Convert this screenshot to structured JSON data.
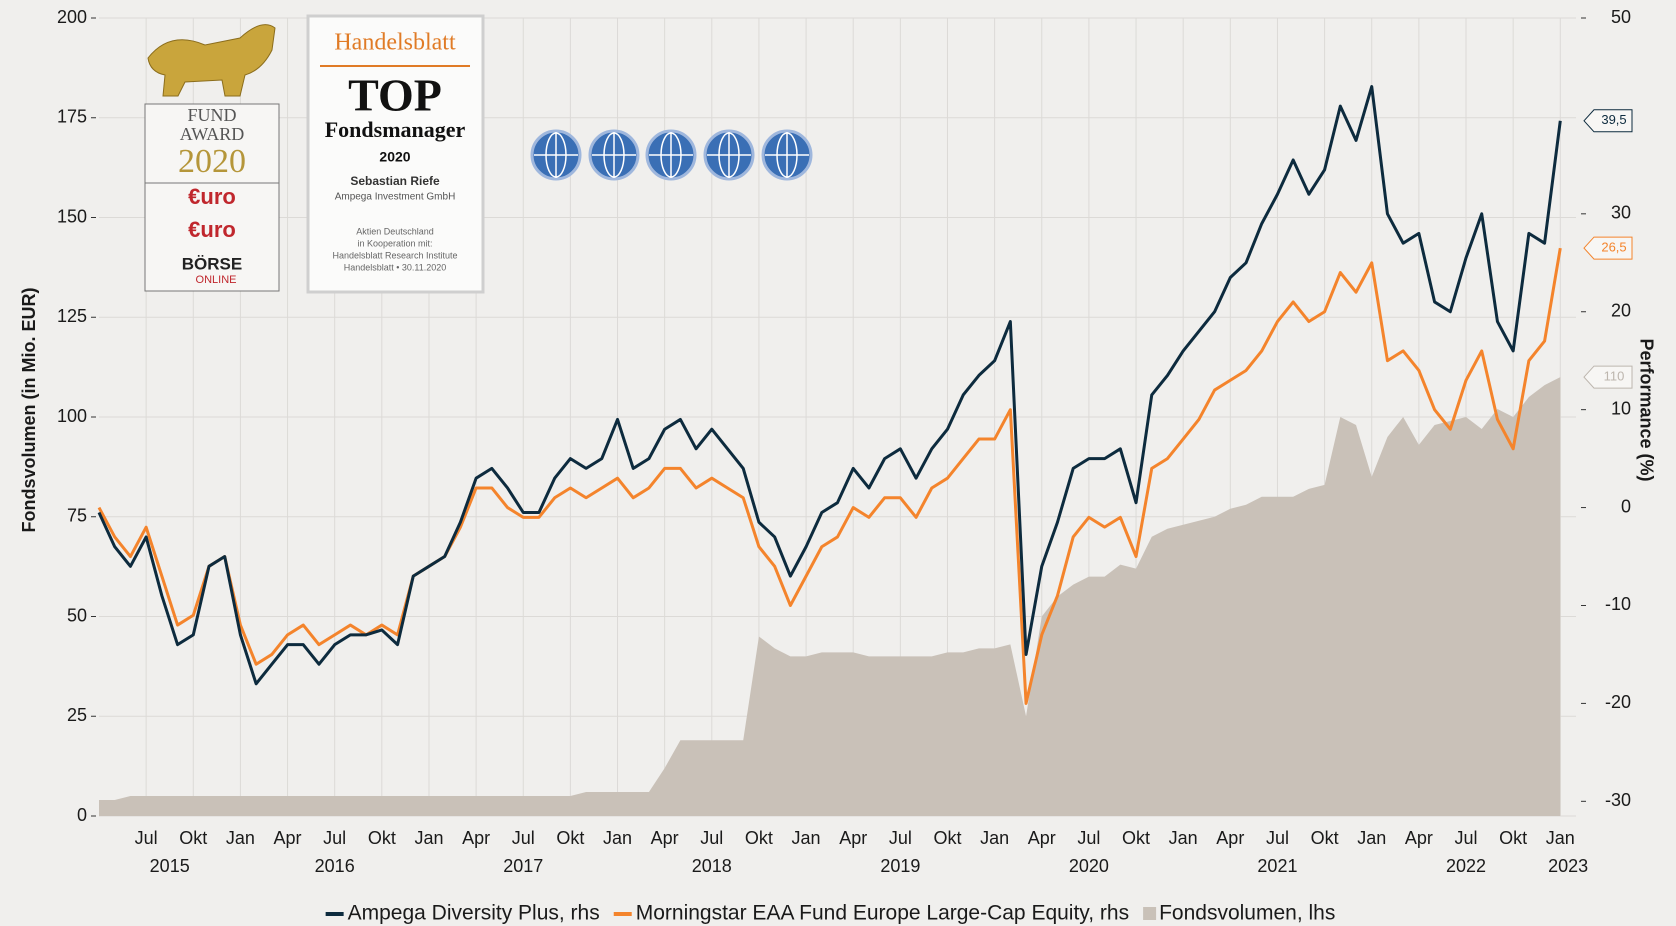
{
  "chart_data": {
    "type": "line",
    "y_label": "Fondsvolumen (in Mio. EUR)",
    "y2_label": "Performance (%)",
    "xlim": [
      "2015-04",
      "2023-02"
    ],
    "xticks": [
      {
        "value": "2015-07",
        "label": "Jul"
      },
      {
        "value": "2015-10",
        "label": "Okt"
      },
      {
        "value": "2016-01",
        "label": "Jan"
      },
      {
        "value": "2016-04",
        "label": "Apr"
      },
      {
        "value": "2016-07",
        "label": "Jul"
      },
      {
        "value": "2016-10",
        "label": "Okt"
      },
      {
        "value": "2017-01",
        "label": "Jan"
      },
      {
        "value": "2017-04",
        "label": "Apr"
      },
      {
        "value": "2017-07",
        "label": "Jul"
      },
      {
        "value": "2017-10",
        "label": "Okt"
      },
      {
        "value": "2018-01",
        "label": "Jan"
      },
      {
        "value": "2018-04",
        "label": "Apr"
      },
      {
        "value": "2018-07",
        "label": "Jul"
      },
      {
        "value": "2018-10",
        "label": "Okt"
      },
      {
        "value": "2019-01",
        "label": "Jan"
      },
      {
        "value": "2019-04",
        "label": "Apr"
      },
      {
        "value": "2019-07",
        "label": "Jul"
      },
      {
        "value": "2019-10",
        "label": "Okt"
      },
      {
        "value": "2020-01",
        "label": "Jan"
      },
      {
        "value": "2020-04",
        "label": "Apr"
      },
      {
        "value": "2020-07",
        "label": "Jul"
      },
      {
        "value": "2020-10",
        "label": "Okt"
      },
      {
        "value": "2021-01",
        "label": "Jan"
      },
      {
        "value": "2021-04",
        "label": "Apr"
      },
      {
        "value": "2021-07",
        "label": "Jul"
      },
      {
        "value": "2021-10",
        "label": "Okt"
      },
      {
        "value": "2022-01",
        "label": "Jan"
      },
      {
        "value": "2022-04",
        "label": "Apr"
      },
      {
        "value": "2022-07",
        "label": "Jul"
      },
      {
        "value": "2022-10",
        "label": "Okt"
      },
      {
        "value": "2023-01",
        "label": "Jan"
      }
    ],
    "years": [
      2015,
      2016,
      2017,
      2018,
      2019,
      2020,
      2021,
      2022,
      2023
    ],
    "ylim": [
      0,
      200
    ],
    "yticks": [
      0,
      25,
      50,
      75,
      100,
      125,
      150,
      175,
      200
    ],
    "y2lim": [
      -31.5,
      50
    ],
    "y2ticks": [
      -30,
      -20,
      -10,
      0,
      10,
      20,
      30,
      50
    ],
    "grid": true,
    "x": [
      "2015-04",
      "2015-05",
      "2015-06",
      "2015-07",
      "2015-08",
      "2015-09",
      "2015-10",
      "2015-11",
      "2015-12",
      "2016-01",
      "2016-02",
      "2016-03",
      "2016-04",
      "2016-05",
      "2016-06",
      "2016-07",
      "2016-08",
      "2016-09",
      "2016-10",
      "2016-11",
      "2016-12",
      "2017-01",
      "2017-02",
      "2017-03",
      "2017-04",
      "2017-05",
      "2017-06",
      "2017-07",
      "2017-08",
      "2017-09",
      "2017-10",
      "2017-11",
      "2017-12",
      "2018-01",
      "2018-02",
      "2018-03",
      "2018-04",
      "2018-05",
      "2018-06",
      "2018-07",
      "2018-08",
      "2018-09",
      "2018-10",
      "2018-11",
      "2018-12",
      "2019-01",
      "2019-02",
      "2019-03",
      "2019-04",
      "2019-05",
      "2019-06",
      "2019-07",
      "2019-08",
      "2019-09",
      "2019-10",
      "2019-11",
      "2019-12",
      "2020-01",
      "2020-02",
      "2020-03",
      "2020-04",
      "2020-05",
      "2020-06",
      "2020-07",
      "2020-08",
      "2020-09",
      "2020-10",
      "2020-11",
      "2020-12",
      "2021-01",
      "2021-02",
      "2021-03",
      "2021-04",
      "2021-05",
      "2021-06",
      "2021-07",
      "2021-08",
      "2021-09",
      "2021-10",
      "2021-11",
      "2021-12",
      "2022-01",
      "2022-02",
      "2022-03",
      "2022-04",
      "2022-05",
      "2022-06",
      "2022-07",
      "2022-08",
      "2022-09",
      "2022-10",
      "2022-11",
      "2022-12",
      "2023-01"
    ],
    "series": [
      {
        "name": "Fondsvolumen, lhs",
        "type": "area",
        "axis": "y",
        "color": "#c9c1b8",
        "label_color": "#bdb6ae",
        "end_label": "110",
        "values": [
          4,
          4,
          5,
          5,
          5,
          5,
          5,
          5,
          5,
          5,
          5,
          5,
          5,
          5,
          5,
          5,
          5,
          5,
          5,
          5,
          5,
          5,
          5,
          5,
          5,
          5,
          5,
          5,
          5,
          5,
          5,
          6,
          6,
          6,
          6,
          6,
          12,
          19,
          19,
          19,
          19,
          19,
          45,
          42,
          40,
          40,
          41,
          41,
          41,
          40,
          40,
          40,
          40,
          40,
          41,
          41,
          42,
          42,
          43,
          25,
          50,
          55,
          58,
          60,
          60,
          63,
          62,
          70,
          72,
          73,
          74,
          75,
          77,
          78,
          80,
          80,
          80,
          82,
          83,
          100,
          98,
          85,
          95,
          100,
          93,
          98,
          99,
          100,
          97,
          102,
          100,
          105,
          108,
          110
        ]
      },
      {
        "name": "Morningstar EAA Fund Europe Large-Cap Equity, rhs",
        "type": "line",
        "axis": "y2",
        "color": "#f4842c",
        "end_label": "26,5",
        "values": [
          0,
          -3,
          -5,
          -2,
          -7,
          -12,
          -11,
          -6,
          -5,
          -12,
          -16,
          -15,
          -13,
          -12,
          -14,
          -13,
          -12,
          -13,
          -12,
          -13,
          -7,
          -6,
          -5,
          -2,
          2,
          2,
          0,
          -1,
          -1,
          1,
          2,
          1,
          2,
          3,
          1,
          2,
          4,
          4,
          2,
          3,
          2,
          1,
          -4,
          -6,
          -10,
          -7,
          -4,
          -3,
          0,
          -1,
          1,
          1,
          -1,
          2,
          3,
          5,
          7,
          7,
          10,
          -20,
          -13,
          -9,
          -3,
          -1,
          -2,
          -1,
          -5,
          4,
          5,
          7,
          9,
          12,
          13,
          14,
          16,
          19,
          21,
          19,
          20,
          24,
          22,
          25,
          15,
          16,
          14,
          10,
          8,
          13,
          16,
          9,
          6,
          15,
          17,
          26.5
        ]
      },
      {
        "name": "Ampega Diversity Plus, rhs",
        "type": "line",
        "axis": "y2",
        "color": "#0d2b3e",
        "end_label": "39,5",
        "values": [
          -0.5,
          -4,
          -6,
          -3,
          -9,
          -14,
          -13,
          -6,
          -5,
          -13,
          -18,
          -16,
          -14,
          -14,
          -16,
          -14,
          -13,
          -13,
          -12.5,
          -14,
          -7,
          -6,
          -5,
          -1.5,
          3,
          4,
          2,
          -0.5,
          -0.5,
          3,
          5,
          4,
          5,
          9,
          4,
          5,
          8,
          9,
          6,
          8,
          6,
          4,
          -1.5,
          -3,
          -7,
          -4,
          -0.5,
          0.5,
          4,
          2,
          5,
          6,
          3,
          6,
          8,
          11.5,
          13.5,
          15,
          19,
          -15,
          -6,
          -1.5,
          4,
          5,
          5,
          6,
          0.5,
          11.5,
          13.5,
          16,
          18,
          20,
          23.5,
          25,
          29,
          32,
          35.5,
          32,
          34.5,
          41,
          37.5,
          43,
          30,
          27,
          28,
          21,
          20,
          25.5,
          30,
          19,
          16,
          28,
          27,
          39.5
        ]
      }
    ],
    "legend_order": [
      2,
      1,
      0
    ]
  },
  "badges": {
    "award": {
      "line1": "FUND",
      "line2": "AWARD",
      "year": "2020",
      "euro1": "€uro",
      "euro2": "€uro",
      "boerse": "BÖRSE",
      "online": "ONLINE"
    },
    "handelsblatt": {
      "brand": "Handelsblatt",
      "top": "TOP",
      "title": "Fondsmanager",
      "year": "2020",
      "name": "Sebastian Riefe",
      "company": "Ampega Investment GmbH",
      "note1": "Aktien Deutschland",
      "note2": "in Kooperation mit:",
      "note3": "Handelsblatt Research Institute",
      "note4": "Handelsblatt • 30.11.2020"
    }
  }
}
